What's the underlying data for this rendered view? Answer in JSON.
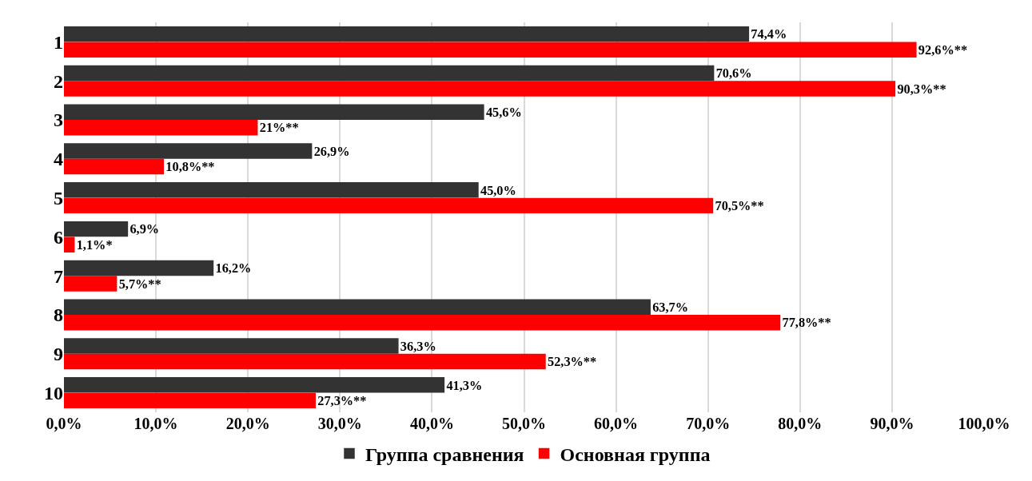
{
  "chart_data": {
    "type": "bar",
    "orientation": "horizontal",
    "categories": [
      "1",
      "2",
      "3",
      "4",
      "5",
      "6",
      "7",
      "8",
      "9",
      "10"
    ],
    "series": [
      {
        "name": "Группа сравнения",
        "color": "#333333",
        "values": [
          74.4,
          70.6,
          45.6,
          26.9,
          45.0,
          6.9,
          16.2,
          63.7,
          36.3,
          41.3
        ],
        "value_labels": [
          "74,4%",
          "70,6%",
          "45,6%",
          "26,9%",
          "45,0%",
          "6,9%",
          "16,2%",
          "63,7%",
          "36,3%",
          "41,3%"
        ]
      },
      {
        "name": "Основная группа",
        "color": "#ff0000",
        "values": [
          92.6,
          90.3,
          21,
          10.8,
          70.5,
          1.1,
          5.7,
          77.8,
          52.3,
          27.3
        ],
        "value_labels": [
          "92,6%**",
          "90,3%**",
          "21%**",
          "10,8%**",
          "70,5%**",
          "1,1%*",
          "5,7%**",
          "77,8%**",
          "52,3%**",
          "27,3%**"
        ]
      }
    ],
    "xlim": [
      0,
      100
    ],
    "xticks": [
      {
        "value": 0,
        "label": "0,0%"
      },
      {
        "value": 10,
        "label": "10,0%"
      },
      {
        "value": 20,
        "label": "20,0%"
      },
      {
        "value": 30,
        "label": "30,0%"
      },
      {
        "value": 40,
        "label": "40,0%"
      },
      {
        "value": 50,
        "label": "50,0%"
      },
      {
        "value": 60,
        "label": "60,0%"
      },
      {
        "value": 70,
        "label": "70,0%"
      },
      {
        "value": 80,
        "label": "80,0%"
      },
      {
        "value": 90,
        "label": "90,0%"
      },
      {
        "value": 100,
        "label": "100,0%"
      }
    ],
    "grid": "x",
    "legend": "bottom"
  }
}
